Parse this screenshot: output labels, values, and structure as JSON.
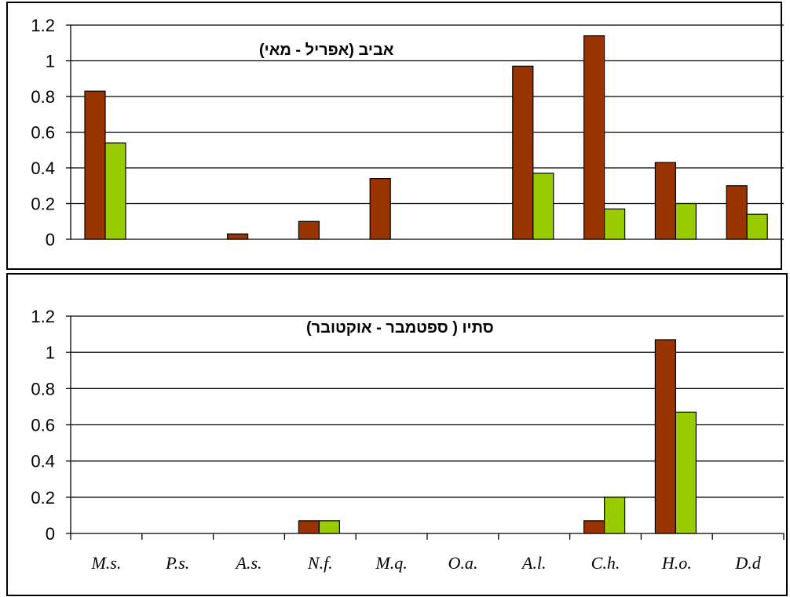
{
  "colors": {
    "series_1": "#993300",
    "series_2": "#99CC00",
    "axis": "#000000",
    "grid": "#000000"
  },
  "categories": [
    "M.s.",
    "P.s.",
    "A.s.",
    "N.f.",
    "M.q.",
    "O.a.",
    "A.l.",
    "C.h.",
    "H.o.",
    "D.d"
  ],
  "chart_data": [
    {
      "type": "bar",
      "title": "אביב (אפריל - מאי)",
      "ylim": [
        0,
        1.2
      ],
      "yticks": [
        "0",
        "0.2",
        "0.4",
        "0.6",
        "0.8",
        "1",
        "1.2"
      ],
      "grid": true,
      "series": [
        {
          "values": [
            0.83,
            0,
            0.03,
            0.1,
            0.34,
            0,
            0.97,
            1.14,
            0.43,
            0.3
          ]
        },
        {
          "values": [
            0.54,
            0,
            0,
            0,
            0,
            0,
            0.37,
            0.17,
            0.2,
            0.14
          ]
        }
      ]
    },
    {
      "type": "bar",
      "title": "סתיו ( ספטמבר - אוקטובר)",
      "ylim": [
        0,
        1.2
      ],
      "yticks": [
        "0",
        "0.2",
        "0.4",
        "0.6",
        "0.8",
        "1",
        "1.2"
      ],
      "grid": true,
      "series": [
        {
          "values": [
            0,
            0,
            0,
            0.07,
            0,
            0,
            0,
            0.07,
            1.07,
            0
          ]
        },
        {
          "values": [
            0,
            0,
            0,
            0.07,
            0,
            0,
            0,
            0.2,
            0.67,
            0
          ]
        }
      ]
    }
  ]
}
